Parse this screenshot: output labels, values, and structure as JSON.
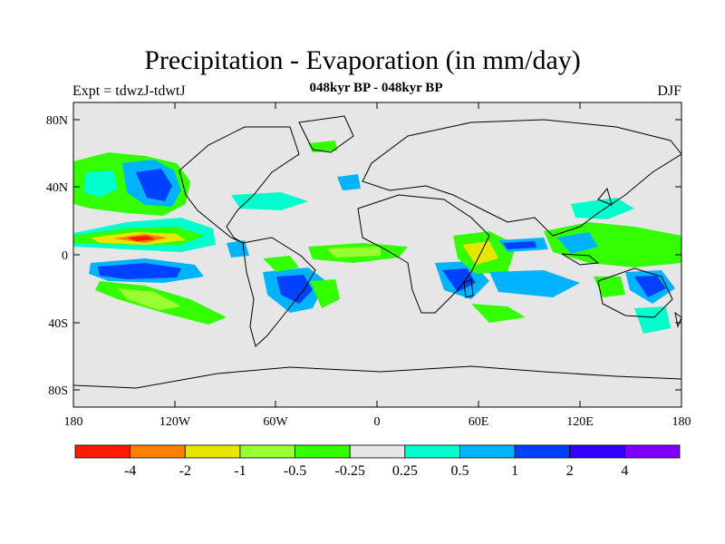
{
  "title": "Precipitation - Evaporation (in mm/day)",
  "subtitle": "048kyr BP - 048kyr BP",
  "left_label": "Expt = tdwzJ-tdwtJ",
  "right_label": "DJF",
  "lat_ticks": [
    "80N",
    "40N",
    "0",
    "40S",
    "80S"
  ],
  "lon_ticks": [
    "180",
    "120W",
    "60W",
    "0",
    "60E",
    "120E",
    "180"
  ],
  "colorbar": {
    "colors": [
      "#ff1a00",
      "#ff8000",
      "#e6e600",
      "#99ff33",
      "#33ff00",
      "#e6e6e6",
      "#00ffcc",
      "#00b3ff",
      "#0040ff",
      "#3300ff",
      "#8000ff"
    ],
    "labels": [
      "-4",
      "-2",
      "-1",
      "-0.5",
      "-0.25",
      "0.25",
      "0.5",
      "1",
      "2",
      "4"
    ]
  },
  "chart_data": {
    "type": "heatmap",
    "variable": "Precipitation - Evaporation",
    "units": "mm/day",
    "season": "DJF",
    "experiment": "tdwzJ-tdwtJ",
    "period": "048kyr BP - 048kyr BP",
    "lon_range": [
      -180,
      180
    ],
    "lat_range": [
      -90,
      90
    ],
    "projection": "cylindrical equidistant",
    "levels": [
      -4,
      -2,
      -1,
      -0.5,
      -0.25,
      0.25,
      0.5,
      1,
      2,
      4
    ]
  }
}
